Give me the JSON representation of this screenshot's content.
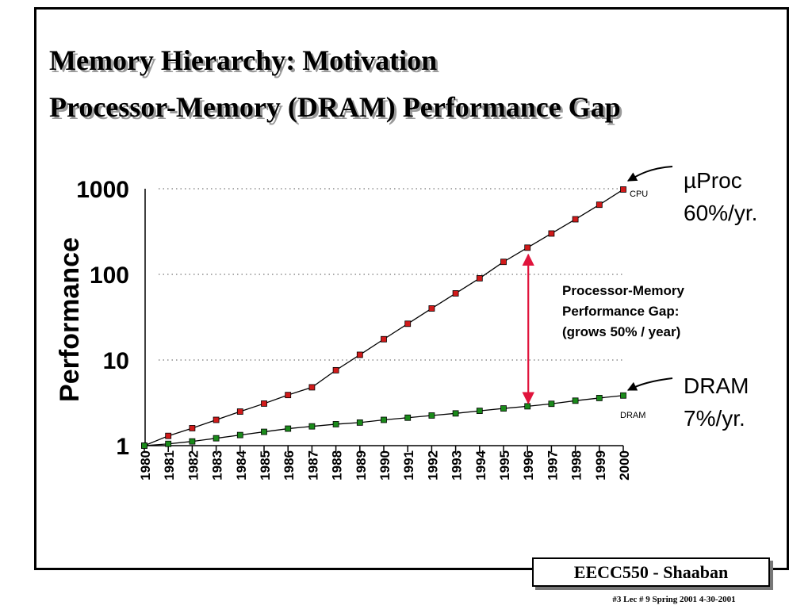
{
  "slide": {
    "title_line_1": "Memory Hierarchy:  Motivation",
    "title_line_2": "Processor-Memory (DRAM) Performance Gap",
    "footer_box": "EECC550 - Shaaban",
    "footer_meta": "#3   Lec # 9   Spring 2001   4-30-2001"
  },
  "chart_data": {
    "type": "line",
    "ylabel": "Performance",
    "xlabel": "",
    "y_scale": "log",
    "ylim": [
      1,
      1000
    ],
    "y_ticks": [
      "1",
      "10",
      "100",
      "1000"
    ],
    "y_tick_values": [
      1,
      10,
      100,
      1000
    ],
    "grid": "dotted horizontal lines at 10, 100, 1000",
    "x": [
      "1980",
      "1981",
      "1982",
      "1983",
      "1984",
      "1985",
      "1986",
      "1987",
      "1988",
      "1989",
      "1990",
      "1991",
      "1992",
      "1993",
      "1994",
      "1995",
      "1996",
      "1997",
      "1998",
      "1999",
      "2000"
    ],
    "series": [
      {
        "name": "CPU",
        "color": "#d11a1a",
        "values": [
          1,
          1.3,
          1.6,
          2.0,
          2.5,
          3.1,
          3.9,
          4.8,
          7.6,
          11.5,
          17.5,
          26.5,
          40,
          60,
          90,
          140,
          205,
          300,
          440,
          650,
          980
        ]
      },
      {
        "name": "DRAM",
        "color": "#1a8a1a",
        "values": [
          1,
          1.05,
          1.12,
          1.22,
          1.33,
          1.45,
          1.58,
          1.68,
          1.78,
          1.86,
          2.0,
          2.12,
          2.25,
          2.38,
          2.55,
          2.72,
          2.88,
          3.08,
          3.35,
          3.6,
          3.85
        ]
      }
    ],
    "annotations": {
      "cpu_small": "CPU",
      "cpu_line_1": "µProc",
      "cpu_line_2": "60%/yr.",
      "dram_small": "DRAM",
      "dram_line_1": "DRAM",
      "dram_line_2": "7%/yr.",
      "gap_line_1": "Processor-Memory",
      "gap_line_2": "Performance Gap:",
      "gap_line_3": "(grows 50% / year)",
      "gap_arrow_year": "1996"
    }
  }
}
